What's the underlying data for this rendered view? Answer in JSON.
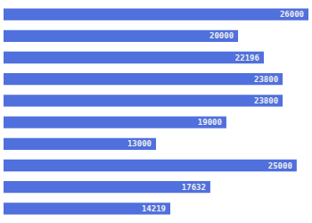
{
  "chart_data": {
    "type": "bar",
    "orientation": "horizontal",
    "categories": [
      null,
      null,
      null,
      null,
      null,
      null,
      null,
      null,
      null,
      null
    ],
    "values": [
      26000,
      20000,
      22196,
      23800,
      23800,
      19000,
      13000,
      25000,
      17632,
      14219
    ],
    "xlim": [
      0,
      26000
    ],
    "data_labels": true,
    "tick_labels": false,
    "grid": false
  }
}
